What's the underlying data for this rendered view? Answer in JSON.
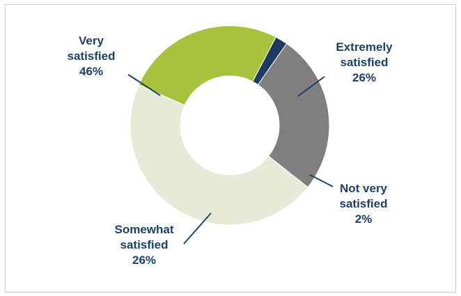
{
  "chart_data": {
    "type": "pie",
    "style": "donut",
    "title": "",
    "categories": [
      "Extremely satisfied",
      "Not very satisfied",
      "Somewhat satisfied",
      "Very satisfied"
    ],
    "values": [
      26,
      2,
      26,
      46
    ],
    "colors": [
      "#a8c23d",
      "#1f3a60",
      "#7f7f7f",
      "#e5ebd8"
    ],
    "labels": [
      {
        "lines": [
          "Extremely",
          "satisfied"
        ],
        "value_text": "26%"
      },
      {
        "lines": [
          "Not very",
          "satisfied"
        ],
        "value_text": "2%"
      },
      {
        "lines": [
          "Somewhat",
          "satisfied"
        ],
        "value_text": "26%"
      },
      {
        "lines": [
          "Very",
          "satisfied"
        ],
        "value_text": "46%"
      }
    ],
    "label_color": "#1f3f6b"
  }
}
